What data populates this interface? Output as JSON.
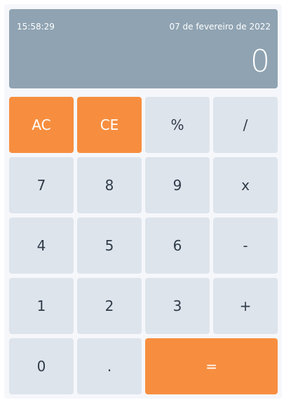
{
  "display": {
    "time": "15:58:29",
    "date": "07 de fevereiro de 2022",
    "value": "0"
  },
  "keys": {
    "ac": "AC",
    "ce": "CE",
    "percent": "%",
    "divide": "/",
    "seven": "7",
    "eight": "8",
    "nine": "9",
    "multiply": "x",
    "four": "4",
    "five": "5",
    "six": "6",
    "minus": "-",
    "one": "1",
    "two": "2",
    "three": "3",
    "plus": "+",
    "zero": "0",
    "dot": ".",
    "equals": "="
  },
  "colors": {
    "display_bg": "#8fa3b2",
    "key_bg": "#dee4ec",
    "accent": "#f78e3f"
  }
}
